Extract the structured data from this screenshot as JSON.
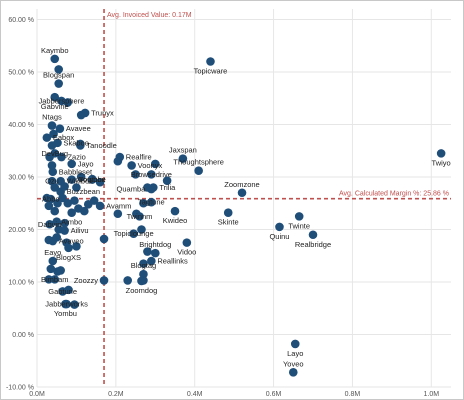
{
  "colors": {
    "point": "#1f4e79",
    "reference_line": "#c0504d",
    "grid": "#e6e6e6",
    "axis_text": "#555555",
    "label_text": "#222222"
  },
  "chart_data": {
    "type": "scatter",
    "title": "",
    "xlabel": "",
    "ylabel": "",
    "xlim": [
      0,
      1050000
    ],
    "ylim": [
      -0.1,
      0.62
    ],
    "x_ticks": [
      0,
      200000,
      400000,
      600000,
      800000,
      1000000
    ],
    "x_tick_labels": [
      "0.0M",
      "0.2M",
      "0.4M",
      "0.6M",
      "0.8M",
      "1.0M"
    ],
    "y_ticks": [
      -0.1,
      0.0,
      0.1,
      0.2,
      0.3,
      0.4,
      0.5,
      0.6
    ],
    "y_tick_labels": [
      "-10.00 %",
      "0.00 %",
      "10.00 %",
      "20.00 %",
      "30.00 %",
      "40.00 %",
      "50.00 %",
      "60.00 %"
    ],
    "grid": true,
    "reference_lines": [
      {
        "axis": "x",
        "value": 170000,
        "label": "Avg. Invoiced Value: 0.17M"
      },
      {
        "axis": "y",
        "value": 0.2586,
        "label": "Avg. Calculated Margin %: 25.86 %"
      }
    ],
    "points": [
      {
        "name": "Kaymbo",
        "x": 45000,
        "y": 0.525,
        "label_pos": "above"
      },
      {
        "name": "",
        "x": 55000,
        "y": 0.505
      },
      {
        "name": "Blogspan",
        "x": 55000,
        "y": 0.478,
        "label_pos": "above"
      },
      {
        "name": "Topicware",
        "x": 440000,
        "y": 0.52,
        "label_pos": "below"
      },
      {
        "name": "Gabvine",
        "x": 45000,
        "y": 0.452,
        "label_pos": "below"
      },
      {
        "name": "Jabbersphere",
        "x": 62000,
        "y": 0.445,
        "label_pos": "center"
      },
      {
        "name": "",
        "x": 78000,
        "y": 0.442
      },
      {
        "name": "Trunyx",
        "x": 122000,
        "y": 0.422,
        "label_pos": "right"
      },
      {
        "name": "",
        "x": 112000,
        "y": 0.418
      },
      {
        "name": "Ntags",
        "x": 38000,
        "y": 0.398,
        "label_pos": "above"
      },
      {
        "name": "Avavee",
        "x": 58000,
        "y": 0.392,
        "label_pos": "right"
      },
      {
        "name": "",
        "x": 42000,
        "y": 0.382
      },
      {
        "name": "Eabox",
        "x": 25000,
        "y": 0.375,
        "label_pos": "right"
      },
      {
        "name": "Skaboo",
        "x": 52000,
        "y": 0.365,
        "label_pos": "right"
      },
      {
        "name": "",
        "x": 110000,
        "y": 0.363
      },
      {
        "name": "Tanoodle",
        "x": 110000,
        "y": 0.36,
        "label_pos": "right"
      },
      {
        "name": "",
        "x": 38000,
        "y": 0.36
      },
      {
        "name": "DevBug",
        "x": 45000,
        "y": 0.345,
        "label_pos": "center"
      },
      {
        "name": "Zazio",
        "x": 62000,
        "y": 0.338,
        "label_pos": "right"
      },
      {
        "name": "",
        "x": 32000,
        "y": 0.338
      },
      {
        "name": "Realfire",
        "x": 210000,
        "y": 0.338,
        "label_pos": "right"
      },
      {
        "name": "",
        "x": 205000,
        "y": 0.33
      },
      {
        "name": "Voonyx",
        "x": 240000,
        "y": 0.322,
        "label_pos": "right"
      },
      {
        "name": "Jaxspan",
        "x": 370000,
        "y": 0.335,
        "label_pos": "above"
      },
      {
        "name": "Thoughtsphere",
        "x": 410000,
        "y": 0.312,
        "label_pos": "above"
      },
      {
        "name": "",
        "x": 300000,
        "y": 0.325
      },
      {
        "name": "Twiyo",
        "x": 1025000,
        "y": 0.345,
        "label_pos": "below"
      },
      {
        "name": "Jayo",
        "x": 88000,
        "y": 0.325,
        "label_pos": "right"
      },
      {
        "name": "",
        "x": 38000,
        "y": 0.322
      },
      {
        "name": "Babbleset",
        "x": 40000,
        "y": 0.31,
        "label_pos": "right"
      },
      {
        "name": "Browsedrive",
        "x": 290000,
        "y": 0.305,
        "label_pos": "center"
      },
      {
        "name": "",
        "x": 250000,
        "y": 0.305
      },
      {
        "name": "Ozu",
        "x": 38000,
        "y": 0.292,
        "label_pos": "center"
      },
      {
        "name": "Wikibox",
        "x": 60000,
        "y": 0.292,
        "label_pos": "right"
      },
      {
        "name": "Cogibox",
        "x": 88000,
        "y": 0.295,
        "label_pos": "right"
      },
      {
        "name": "Youtube",
        "x": 140000,
        "y": 0.295,
        "label_pos": "center"
      },
      {
        "name": "",
        "x": 112000,
        "y": 0.3
      },
      {
        "name": "",
        "x": 140000,
        "y": 0.296
      },
      {
        "name": "",
        "x": 160000,
        "y": 0.29
      },
      {
        "name": "Quamba",
        "x": 290000,
        "y": 0.277,
        "label_pos": "left"
      },
      {
        "name": "Trilia",
        "x": 295000,
        "y": 0.28,
        "label_pos": "right"
      },
      {
        "name": "",
        "x": 280000,
        "y": 0.28
      },
      {
        "name": "",
        "x": 330000,
        "y": 0.293
      },
      {
        "name": "Zoomzone",
        "x": 520000,
        "y": 0.27,
        "label_pos": "above"
      },
      {
        "name": "Buzzbean",
        "x": 60000,
        "y": 0.272,
        "label_pos": "right"
      },
      {
        "name": "",
        "x": 45000,
        "y": 0.28
      },
      {
        "name": "",
        "x": 70000,
        "y": 0.282
      },
      {
        "name": "",
        "x": 100000,
        "y": 0.28
      },
      {
        "name": "Abbo",
        "x": 35000,
        "y": 0.258,
        "label_pos": "center"
      },
      {
        "name": "",
        "x": 25000,
        "y": 0.26
      },
      {
        "name": "",
        "x": 52000,
        "y": 0.25
      },
      {
        "name": "",
        "x": 65000,
        "y": 0.26
      },
      {
        "name": "",
        "x": 78000,
        "y": 0.25
      },
      {
        "name": "",
        "x": 95000,
        "y": 0.255
      },
      {
        "name": "",
        "x": 105000,
        "y": 0.24
      },
      {
        "name": "",
        "x": 130000,
        "y": 0.248
      },
      {
        "name": "",
        "x": 145000,
        "y": 0.255
      },
      {
        "name": "Avamm",
        "x": 160000,
        "y": 0.245,
        "label_pos": "right"
      },
      {
        "name": "Tagtune",
        "x": 290000,
        "y": 0.252,
        "label_pos": "center"
      },
      {
        "name": "",
        "x": 270000,
        "y": 0.25
      },
      {
        "name": "",
        "x": 30000,
        "y": 0.245
      },
      {
        "name": "Aimbo",
        "x": 88000,
        "y": 0.232,
        "label_pos": "below"
      },
      {
        "name": "",
        "x": 45000,
        "y": 0.235
      },
      {
        "name": "",
        "x": 120000,
        "y": 0.235
      },
      {
        "name": "Twinte",
        "x": 665000,
        "y": 0.225,
        "label_pos": "below"
      },
      {
        "name": "Skinte",
        "x": 485000,
        "y": 0.232,
        "label_pos": "below"
      },
      {
        "name": "Kwideo",
        "x": 350000,
        "y": 0.235,
        "label_pos": "below"
      },
      {
        "name": "Twinnm",
        "x": 260000,
        "y": 0.225,
        "label_pos": "center"
      },
      {
        "name": "",
        "x": 205000,
        "y": 0.23
      },
      {
        "name": "",
        "x": 252000,
        "y": 0.23
      },
      {
        "name": "Dabvin",
        "x": 32000,
        "y": 0.21,
        "label_pos": "center"
      },
      {
        "name": "",
        "x": 50000,
        "y": 0.215
      },
      {
        "name": "",
        "x": 70000,
        "y": 0.212
      },
      {
        "name": "Quinu",
        "x": 615000,
        "y": 0.205,
        "label_pos": "below"
      },
      {
        "name": "Realbridge",
        "x": 700000,
        "y": 0.19,
        "label_pos": "below"
      },
      {
        "name": "Ailivu",
        "x": 70000,
        "y": 0.198,
        "label_pos": "right"
      },
      {
        "name": "",
        "x": 55000,
        "y": 0.2
      },
      {
        "name": "",
        "x": 265000,
        "y": 0.2
      },
      {
        "name": "Topiclounge",
        "x": 245000,
        "y": 0.192,
        "label_pos": "center"
      },
      {
        "name": "",
        "x": 170000,
        "y": 0.182
      },
      {
        "name": "",
        "x": 50000,
        "y": 0.185
      },
      {
        "name": "Avaveo",
        "x": 40000,
        "y": 0.178,
        "label_pos": "right"
      },
      {
        "name": "",
        "x": 30000,
        "y": 0.18
      },
      {
        "name": "",
        "x": 75000,
        "y": 0.175
      },
      {
        "name": "BlogXS",
        "x": 80000,
        "y": 0.165,
        "label_pos": "below"
      },
      {
        "name": "",
        "x": 100000,
        "y": 0.168
      },
      {
        "name": "Vidoo",
        "x": 380000,
        "y": 0.175,
        "label_pos": "below"
      },
      {
        "name": "Brightdog",
        "x": 300000,
        "y": 0.155,
        "label_pos": "above"
      },
      {
        "name": "",
        "x": 280000,
        "y": 0.158
      },
      {
        "name": "Eayo",
        "x": 40000,
        "y": 0.14,
        "label_pos": "above"
      },
      {
        "name": "Reallinks",
        "x": 290000,
        "y": 0.14,
        "label_pos": "right"
      },
      {
        "name": "",
        "x": 270000,
        "y": 0.135
      },
      {
        "name": "",
        "x": 35000,
        "y": 0.125
      },
      {
        "name": "",
        "x": 52000,
        "y": 0.12
      },
      {
        "name": "",
        "x": 60000,
        "y": 0.122
      },
      {
        "name": "Blogtag",
        "x": 270000,
        "y": 0.115,
        "label_pos": "above"
      },
      {
        "name": "Bimbam",
        "x": 45000,
        "y": 0.105,
        "label_pos": "center"
      },
      {
        "name": "",
        "x": 30000,
        "y": 0.105
      },
      {
        "name": "Zoozzy",
        "x": 170000,
        "y": 0.103,
        "label_pos": "left"
      },
      {
        "name": "",
        "x": 230000,
        "y": 0.103
      },
      {
        "name": "",
        "x": 270000,
        "y": 0.103
      },
      {
        "name": "Zoomdog",
        "x": 265000,
        "y": 0.102,
        "label_pos": "below"
      },
      {
        "name": "Gabtune",
        "x": 65000,
        "y": 0.082,
        "label_pos": "center"
      },
      {
        "name": "",
        "x": 80000,
        "y": 0.085
      },
      {
        "name": "Jabberworks",
        "x": 75000,
        "y": 0.058,
        "label_pos": "center"
      },
      {
        "name": "",
        "x": 95000,
        "y": 0.057
      },
      {
        "name": "Yombu",
        "x": 72000,
        "y": 0.058,
        "label_pos": "below"
      },
      {
        "name": "Layo",
        "x": 655000,
        "y": -0.018,
        "label_pos": "below"
      },
      {
        "name": "Yoveo",
        "x": 650000,
        "y": -0.072,
        "label_pos": "above"
      }
    ]
  }
}
